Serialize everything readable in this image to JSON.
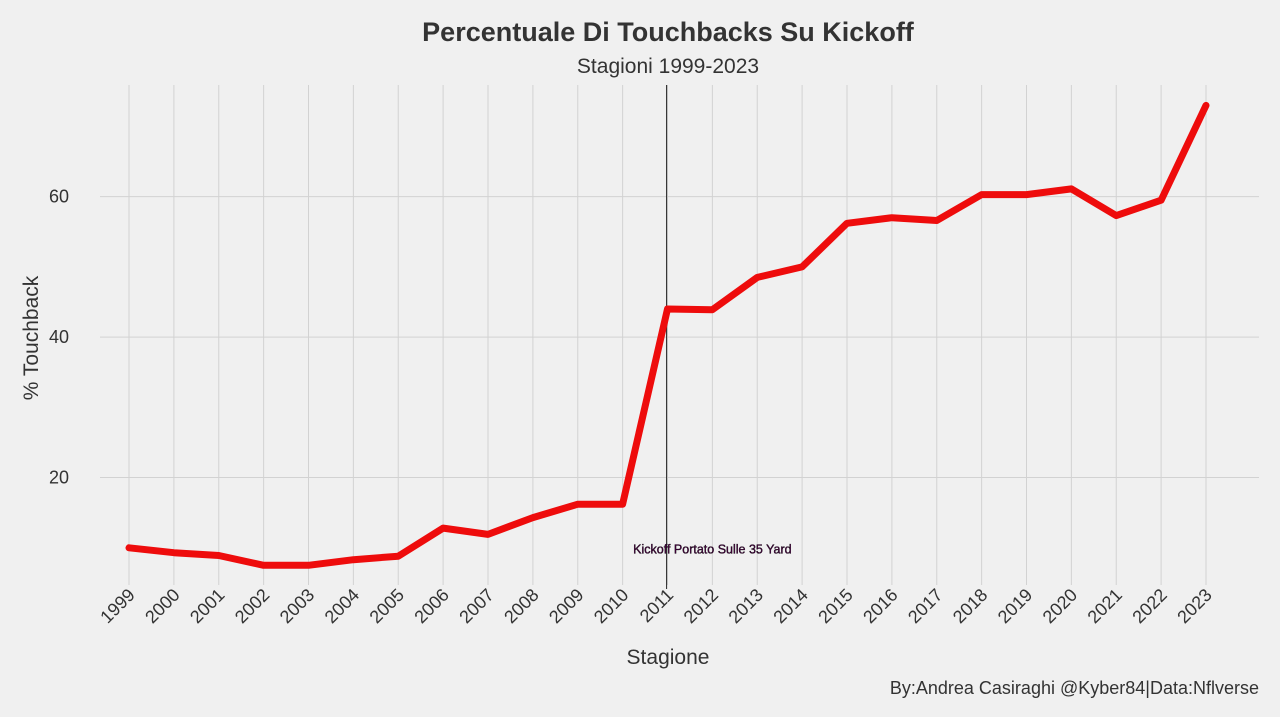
{
  "chart_data": {
    "type": "line",
    "title": "Percentuale Di Touchbacks Su Kickoff",
    "subtitle": "Stagioni 1999-2023",
    "xlabel": "Stagione",
    "ylabel": "% Touchback",
    "caption": "By:Andrea Casiraghi @Kyber84|Data:Nflverse",
    "x": [
      1999,
      2000,
      2001,
      2002,
      2003,
      2004,
      2005,
      2006,
      2007,
      2008,
      2009,
      2010,
      2011,
      2012,
      2013,
      2014,
      2015,
      2016,
      2017,
      2018,
      2019,
      2020,
      2021,
      2022,
      2023
    ],
    "series": [
      {
        "values": [
          10.0,
          9.3,
          8.9,
          7.5,
          7.5,
          8.3,
          8.8,
          12.8,
          11.9,
          14.3,
          16.2,
          16.2,
          44.0,
          43.9,
          48.5,
          50.0,
          56.2,
          57.0,
          56.6,
          60.3,
          60.3,
          61.1,
          57.3,
          59.5,
          73.0
        ],
        "color": "#ee0c0c"
      }
    ],
    "yticks": [
      20,
      40,
      60
    ],
    "ylim": [
      4.7,
      75.9
    ],
    "xlim": [
      1999,
      2023
    ],
    "grid": true,
    "legend": "none",
    "annotations": [
      {
        "type": "vline",
        "x": 2010.98
      },
      {
        "type": "text",
        "x": 2012.0,
        "y": 9.2,
        "text": "Kickoff Portato Sulle 35 Yard"
      }
    ]
  }
}
